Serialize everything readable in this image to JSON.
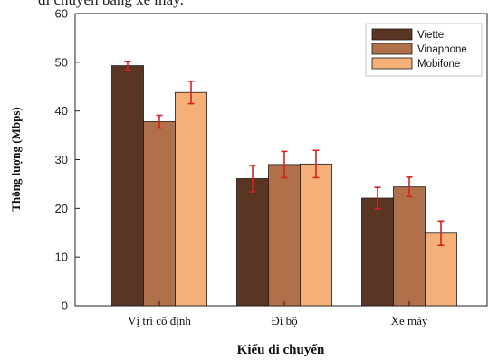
{
  "caption_fragment": "di chuyển bằng xe máy.",
  "colors": {
    "Viettel": "#5a3523",
    "Vinaphone": "#b0704a",
    "Mobifone": "#f5b07a",
    "error_bar": "#d62020"
  },
  "chart_data": {
    "type": "bar",
    "title": "",
    "xlabel": "Kiểu di chuyển",
    "ylabel": "Thông lượng (Mbps)",
    "categories": [
      "Vị trí cố định",
      "Đi bộ",
      "Xe máy"
    ],
    "ylim": [
      0,
      60
    ],
    "yticks": [
      0,
      10,
      20,
      30,
      40,
      50,
      60
    ],
    "grid": false,
    "legend_position": "top-right",
    "series": [
      {
        "name": "Viettel",
        "values": [
          49.3,
          26.1,
          22.1
        ],
        "errors": [
          0.9,
          2.7,
          2.2
        ]
      },
      {
        "name": "Vinaphone",
        "values": [
          37.8,
          29.0,
          24.4
        ],
        "errors": [
          1.3,
          2.7,
          2.0
        ]
      },
      {
        "name": "Mobifone",
        "values": [
          43.8,
          29.1,
          14.9
        ],
        "errors": [
          2.3,
          2.8,
          2.5
        ]
      }
    ]
  }
}
